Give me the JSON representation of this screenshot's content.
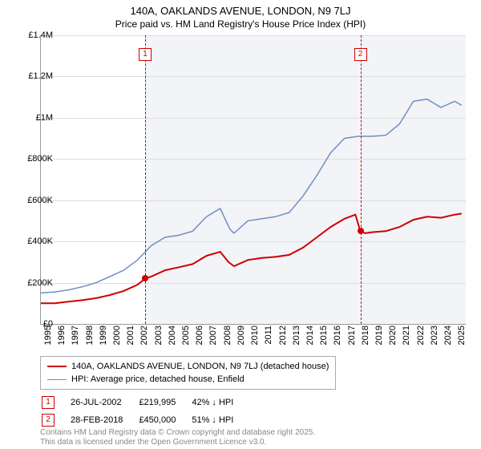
{
  "title": "140A, OAKLANDS AVENUE, LONDON, N9 7LJ",
  "subtitle": "Price paid vs. HM Land Registry's House Price Index (HPI)",
  "chart": {
    "type": "line",
    "x_years": [
      1995,
      1996,
      1997,
      1998,
      1999,
      2000,
      2001,
      2002,
      2003,
      2004,
      2005,
      2006,
      2007,
      2008,
      2009,
      2010,
      2011,
      2012,
      2013,
      2014,
      2015,
      2016,
      2017,
      2018,
      2019,
      2020,
      2021,
      2022,
      2023,
      2024,
      2025
    ],
    "x_min": 1995,
    "x_max": 2025.8,
    "y_min": 0,
    "y_max": 1400000,
    "y_step": 200000,
    "y_labels": [
      "£0",
      "£200K",
      "£400K",
      "£600K",
      "£800K",
      "£1M",
      "£1.2M",
      "£1.4M"
    ],
    "grid_color": "#dddddd",
    "axis_color": "#999999",
    "background_color": "#ffffff",
    "shade_color": "#f3f4f7",
    "shade_from_year": 2002.56,
    "series": [
      {
        "name": "price_paid",
        "label": "140A, OAKLANDS AVENUE, LONDON, N9 7LJ (detached house)",
        "color": "#cc0000",
        "width": 2,
        "data": [
          [
            1995,
            100000
          ],
          [
            1996,
            100000
          ],
          [
            1997,
            108000
          ],
          [
            1998,
            115000
          ],
          [
            1999,
            125000
          ],
          [
            2000,
            140000
          ],
          [
            2001,
            160000
          ],
          [
            2002,
            190000
          ],
          [
            2002.56,
            219995
          ],
          [
            2003,
            230000
          ],
          [
            2004,
            260000
          ],
          [
            2005,
            275000
          ],
          [
            2006,
            290000
          ],
          [
            2007,
            330000
          ],
          [
            2008,
            350000
          ],
          [
            2008.6,
            300000
          ],
          [
            2009,
            280000
          ],
          [
            2010,
            310000
          ],
          [
            2011,
            320000
          ],
          [
            2012,
            325000
          ],
          [
            2013,
            335000
          ],
          [
            2014,
            370000
          ],
          [
            2015,
            420000
          ],
          [
            2016,
            470000
          ],
          [
            2017,
            510000
          ],
          [
            2017.8,
            530000
          ],
          [
            2018.16,
            450000
          ],
          [
            2018.5,
            440000
          ],
          [
            2019,
            445000
          ],
          [
            2020,
            450000
          ],
          [
            2021,
            470000
          ],
          [
            2022,
            505000
          ],
          [
            2023,
            520000
          ],
          [
            2024,
            515000
          ],
          [
            2025,
            530000
          ],
          [
            2025.5,
            535000
          ]
        ]
      },
      {
        "name": "hpi",
        "label": "HPI: Average price, detached house, Enfield",
        "color": "#6e8fc2",
        "width": 1.5,
        "data": [
          [
            1995,
            150000
          ],
          [
            1996,
            155000
          ],
          [
            1997,
            165000
          ],
          [
            1998,
            180000
          ],
          [
            1999,
            200000
          ],
          [
            2000,
            230000
          ],
          [
            2001,
            260000
          ],
          [
            2002,
            310000
          ],
          [
            2003,
            380000
          ],
          [
            2004,
            420000
          ],
          [
            2005,
            430000
          ],
          [
            2006,
            450000
          ],
          [
            2007,
            520000
          ],
          [
            2008,
            560000
          ],
          [
            2008.7,
            460000
          ],
          [
            2009,
            440000
          ],
          [
            2010,
            500000
          ],
          [
            2011,
            510000
          ],
          [
            2012,
            520000
          ],
          [
            2013,
            540000
          ],
          [
            2014,
            620000
          ],
          [
            2015,
            720000
          ],
          [
            2016,
            830000
          ],
          [
            2017,
            900000
          ],
          [
            2018,
            910000
          ],
          [
            2019,
            910000
          ],
          [
            2020,
            915000
          ],
          [
            2021,
            970000
          ],
          [
            2022,
            1080000
          ],
          [
            2023,
            1090000
          ],
          [
            2024,
            1050000
          ],
          [
            2025,
            1080000
          ],
          [
            2025.5,
            1060000
          ]
        ]
      }
    ],
    "events": [
      {
        "num": "1",
        "year": 2002.56,
        "value": 219995,
        "date": "26-JUL-2002",
        "price": "£219,995",
        "delta": "42% ↓ HPI"
      },
      {
        "num": "2",
        "year": 2018.16,
        "value": 450000,
        "date": "28-FEB-2018",
        "price": "£450,000",
        "delta": "51% ↓ HPI"
      }
    ]
  },
  "footer1": "Contains HM Land Registry data © Crown copyright and database right 2025.",
  "footer2": "This data is licensed under the Open Government Licence v3.0."
}
